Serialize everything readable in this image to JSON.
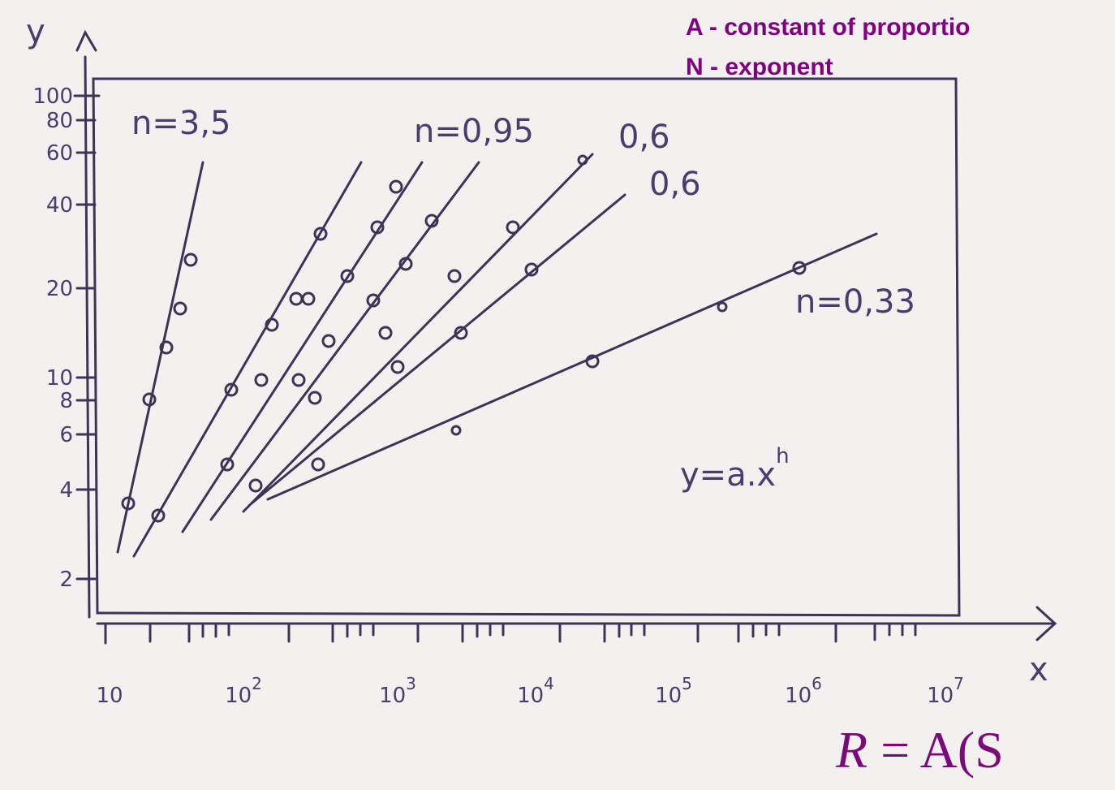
{
  "header": {
    "lines": [
      "A - constant of proportio",
      "N - exponent"
    ]
  },
  "axes": {
    "y_label": "y",
    "x_label": "x",
    "y_ticks": [
      "100",
      "80",
      "60",
      "40",
      "20",
      "10",
      "8",
      "6",
      "4",
      "2"
    ],
    "x_ticks": [
      {
        "base": "10",
        "exp": ""
      },
      {
        "base": "10",
        "exp": "2"
      },
      {
        "base": "10",
        "exp": "3"
      },
      {
        "base": "10",
        "exp": "4"
      },
      {
        "base": "10",
        "exp": "5"
      },
      {
        "base": "10",
        "exp": "6"
      },
      {
        "base": "10",
        "exp": "7"
      }
    ]
  },
  "curve_labels": [
    "n=3,5",
    "n=0,95",
    "0,6",
    "0,6",
    "n=0,33"
  ],
  "equation": {
    "base": "y=a.x",
    "exp": "h"
  },
  "formula": {
    "lhs": "R",
    "eq": " = ",
    "rhs": "A(S"
  }
}
